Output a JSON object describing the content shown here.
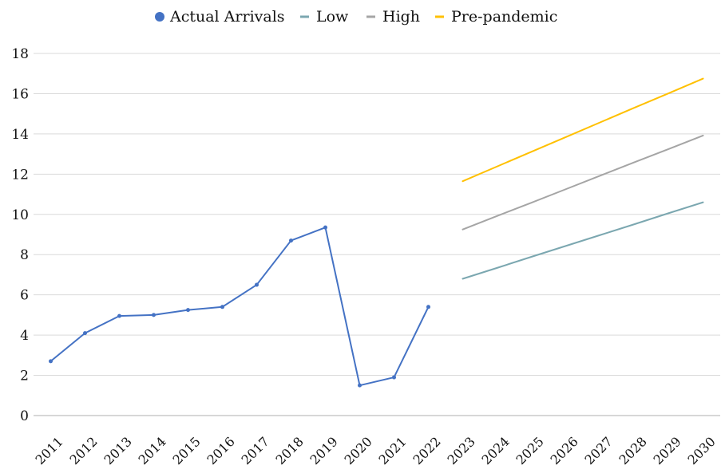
{
  "chart_data": {
    "type": "line",
    "x": [
      "2011",
      "2012",
      "2013",
      "2014",
      "2015",
      "2016",
      "2017",
      "2018",
      "2019",
      "2020",
      "2021",
      "2022",
      "2023",
      "2024",
      "2025",
      "2026",
      "2027",
      "2028",
      "2029",
      "2030"
    ],
    "ylim": [
      0,
      18
    ],
    "yticks": [
      0,
      2,
      4,
      6,
      8,
      10,
      12,
      14,
      16,
      18
    ],
    "grid": true,
    "legend_position": "top",
    "series": [
      {
        "name": "Actual Arrivals",
        "color": "#4472C4",
        "markers": true,
        "values": [
          2.7,
          4.1,
          4.95,
          5.0,
          5.25,
          5.4,
          6.5,
          8.7,
          9.35,
          1.5,
          1.9,
          5.4,
          null,
          null,
          null,
          null,
          null,
          null,
          null,
          null
        ]
      },
      {
        "name": "Low",
        "color": "#7BA7B0",
        "markers": false,
        "values": [
          null,
          null,
          null,
          null,
          null,
          null,
          null,
          null,
          null,
          null,
          null,
          null,
          6.8,
          7.34,
          7.89,
          8.43,
          8.97,
          9.51,
          10.06,
          10.6
        ]
      },
      {
        "name": "High",
        "color": "#A5A5A5",
        "markers": false,
        "values": [
          null,
          null,
          null,
          null,
          null,
          null,
          null,
          null,
          null,
          null,
          null,
          null,
          9.25,
          9.92,
          10.58,
          11.25,
          11.92,
          12.59,
          13.25,
          13.92
        ]
      },
      {
        "name": "Pre-pandemic",
        "color": "#FFC000",
        "markers": false,
        "values": [
          null,
          null,
          null,
          null,
          null,
          null,
          null,
          null,
          null,
          null,
          null,
          null,
          11.65,
          12.38,
          13.11,
          13.84,
          14.57,
          15.3,
          16.02,
          16.75
        ]
      }
    ]
  }
}
